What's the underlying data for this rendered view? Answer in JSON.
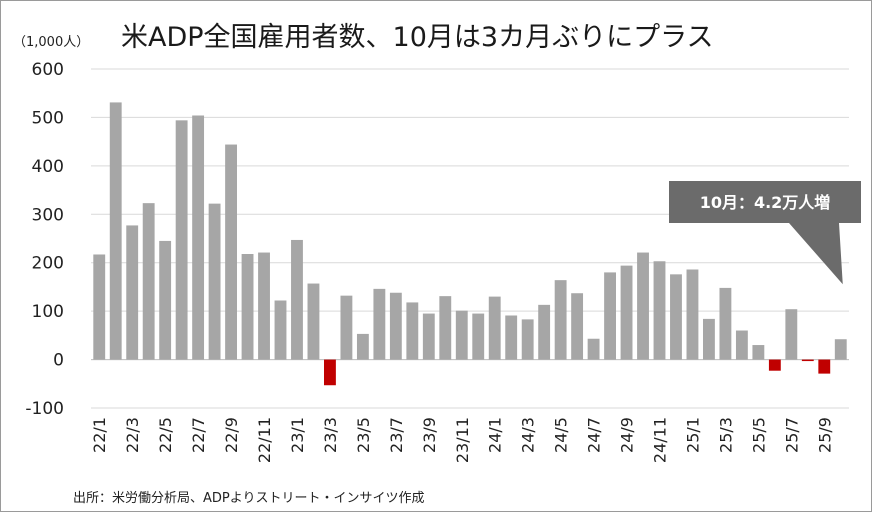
{
  "title": "米ADP全国雇用者数、10月は3カ月ぶりにプラス",
  "unit_label": "（1,000人）",
  "source": "出所：米労働分析局、ADPよりストリート・インサイツ作成",
  "callout": "10月：4.2万人増",
  "colors": {
    "positive": "#a6a6a6",
    "negative": "#c00000",
    "callout": "#6b6b6b",
    "grid": "#d9d9d9"
  },
  "chart_data": {
    "type": "bar",
    "title": "米ADP全国雇用者数、10月は3カ月ぶりにプラス",
    "ylabel": "（1,000人）",
    "xlabel": "",
    "ylim": [
      -100,
      600
    ],
    "yticks": [
      -100,
      0,
      100,
      200,
      300,
      400,
      500,
      600
    ],
    "grid": true,
    "categories": [
      "22/1",
      "22/2",
      "22/3",
      "22/4",
      "22/5",
      "22/6",
      "22/7",
      "22/8",
      "22/9",
      "22/10",
      "22/11",
      "22/12",
      "23/1",
      "23/2",
      "23/3",
      "23/4",
      "23/5",
      "23/6",
      "23/7",
      "23/8",
      "23/9",
      "23/10",
      "23/11",
      "23/12",
      "24/1",
      "24/2",
      "24/3",
      "24/4",
      "24/5",
      "24/6",
      "24/7",
      "24/8",
      "24/9",
      "24/10",
      "24/11",
      "24/12",
      "25/1",
      "25/2",
      "25/3",
      "25/4",
      "25/5",
      "25/6",
      "25/7",
      "25/8",
      "25/9",
      "25/10"
    ],
    "tick_labels": [
      "22/1",
      "22/3",
      "22/5",
      "22/7",
      "22/9",
      "22/11",
      "23/1",
      "23/3",
      "23/5",
      "23/7",
      "23/9",
      "23/11",
      "24/1",
      "24/3",
      "24/5",
      "24/7",
      "24/9",
      "24/11",
      "25/1",
      "25/3",
      "25/5",
      "25/7",
      "25/9"
    ],
    "values": [
      217,
      531,
      277,
      323,
      245,
      494,
      504,
      322,
      444,
      218,
      221,
      122,
      247,
      157,
      -53,
      132,
      53,
      146,
      138,
      118,
      95,
      131,
      101,
      95,
      130,
      91,
      83,
      113,
      164,
      137,
      43,
      180,
      194,
      221,
      203,
      176,
      186,
      84,
      148,
      60,
      30,
      -23,
      104,
      -3,
      -29,
      42
    ]
  }
}
